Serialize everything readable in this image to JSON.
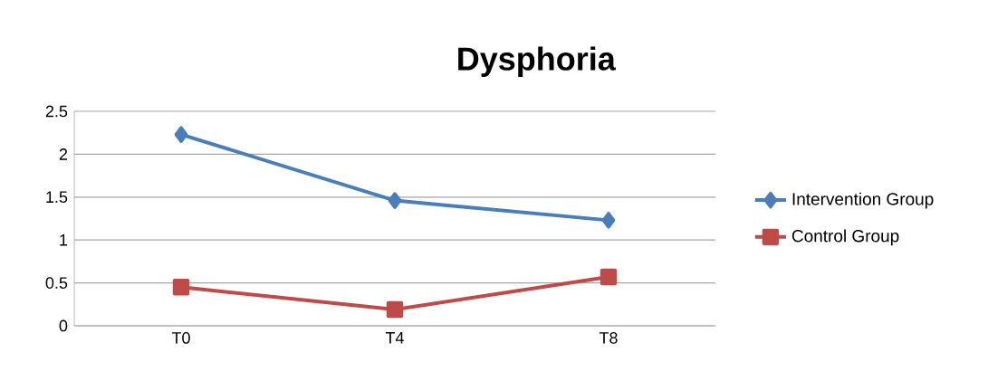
{
  "chart_data": {
    "type": "line",
    "title": "Dysphoria",
    "categories": [
      "T0",
      "T4",
      "T8"
    ],
    "series": [
      {
        "name": "Intervention Group",
        "color": "#4a7ebb",
        "marker": "diamond",
        "values": [
          2.23,
          1.46,
          1.23
        ]
      },
      {
        "name": "Control Group",
        "color": "#be4b48",
        "marker": "square",
        "values": [
          0.45,
          0.19,
          0.57
        ]
      }
    ],
    "ylim": [
      0,
      2.5
    ],
    "yticks": [
      0,
      0.5,
      1,
      1.5,
      2,
      2.5
    ],
    "grid": "y",
    "legend": "right",
    "line_style": "solid"
  }
}
